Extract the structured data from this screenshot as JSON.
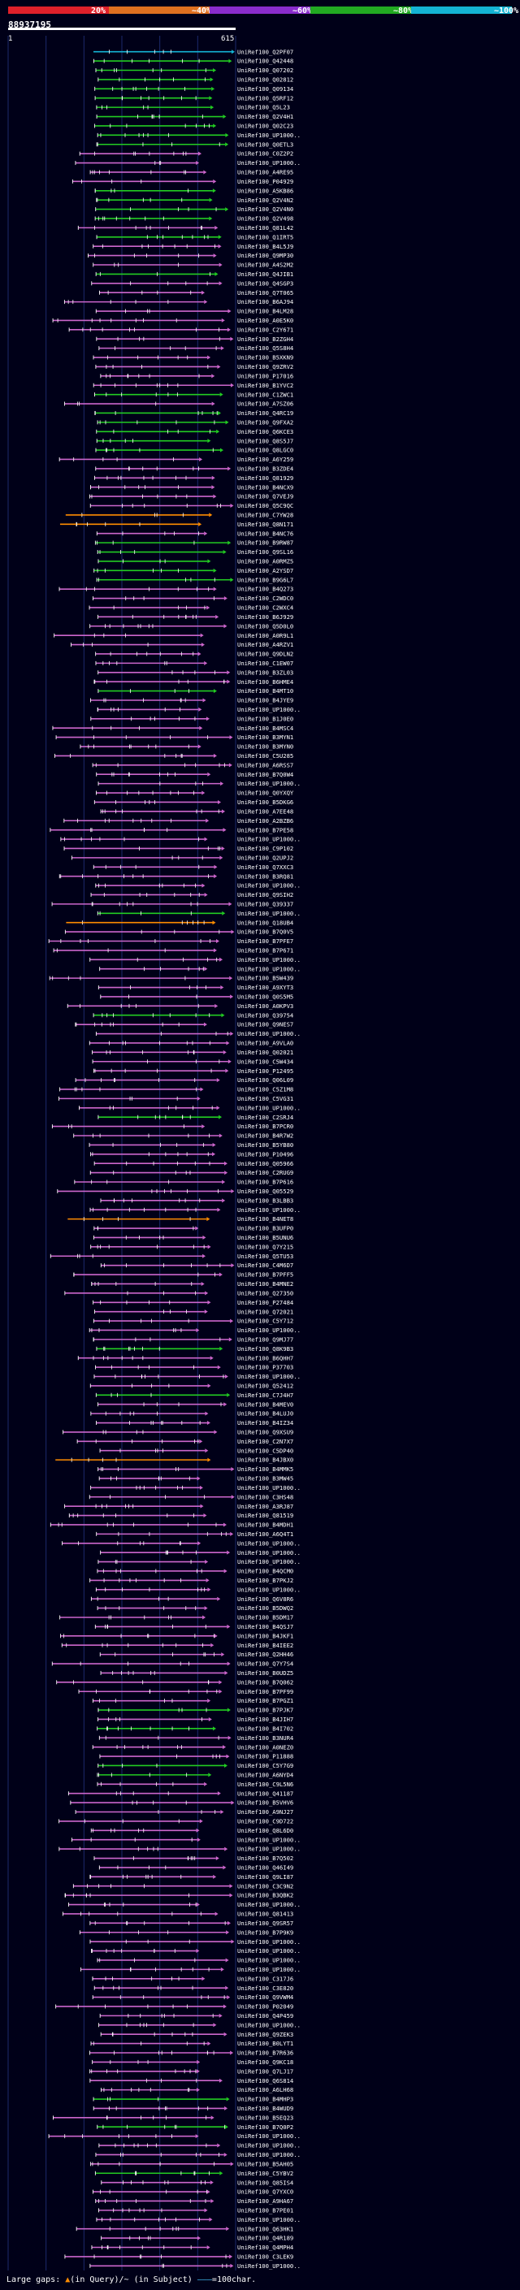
{
  "legend": {
    "segments": [
      {
        "label": "20%",
        "color": "#e0202a"
      },
      {
        "label": "~40%",
        "color": "#e07020"
      },
      {
        "label": "~60%",
        "color": "#8a2ccc"
      },
      {
        "label": "~80%",
        "color": "#22aa22"
      },
      {
        "label": "~100%",
        "color": "#14b4d4"
      }
    ]
  },
  "query": {
    "id": "88937195",
    "length_start": "1",
    "length_end": "615",
    "color": "#ffffff"
  },
  "colors": {
    "low": "#ff8c00",
    "mid": "#cc66cc",
    "high": "#22cc22",
    "top": "#14b4d4",
    "grid": "#1c2a6c",
    "label": "#ffffff"
  },
  "hits": [
    {
      "name": "UniRef100_Q2PF07",
      "cls": "top"
    },
    {
      "name": "UniRef100_Q42448",
      "cls": "high"
    },
    {
      "name": "UniRef100_Q07202",
      "cls": "high"
    },
    {
      "name": "UniRef100_Q02812",
      "cls": "high"
    },
    {
      "name": "UniRef100_Q09134",
      "cls": "high"
    },
    {
      "name": "UniRef100_Q5RF12",
      "cls": "high"
    },
    {
      "name": "UniRef100_Q5L23",
      "cls": "high"
    },
    {
      "name": "UniRef100_Q2V4H1",
      "cls": "high"
    },
    {
      "name": "UniRef100_Q02C23",
      "cls": "high"
    },
    {
      "name": "UniRef100_UP1000..",
      "cls": "high"
    },
    {
      "name": "UniRef100_Q0ETL3",
      "cls": "high"
    },
    {
      "name": "UniRef100_C0Z2P2",
      "cls": "mid"
    },
    {
      "name": "UniRef100_UP1000..",
      "cls": "mid"
    },
    {
      "name": "UniRef100_A4RE95",
      "cls": "mid"
    },
    {
      "name": "UniRef100_P04929",
      "cls": "mid"
    },
    {
      "name": "UniRef100_A5KB86",
      "cls": "high"
    },
    {
      "name": "UniRef100_Q2V4N2",
      "cls": "high"
    },
    {
      "name": "UniRef100_Q2V4N0",
      "cls": "high"
    },
    {
      "name": "UniRef100_Q2V498",
      "cls": "high"
    },
    {
      "name": "UniRef100_Q81L42",
      "cls": "mid"
    },
    {
      "name": "UniRef100_Q1IRT5",
      "cls": "high"
    },
    {
      "name": "UniRef100_B4L5J9",
      "cls": "mid"
    },
    {
      "name": "UniRef100_Q9MP30",
      "cls": "mid"
    },
    {
      "name": "UniRef100_A4S2M2",
      "cls": "mid"
    },
    {
      "name": "UniRef100_Q4JIB1",
      "cls": "high"
    },
    {
      "name": "UniRef100_Q4SGP3",
      "cls": "mid"
    },
    {
      "name": "UniRef100_Q7T065",
      "cls": "mid"
    },
    {
      "name": "UniRef100_B6AJ94",
      "cls": "mid"
    },
    {
      "name": "UniRef100_B4LM28",
      "cls": "mid"
    },
    {
      "name": "UniRef100_A0E5K0",
      "cls": "mid"
    },
    {
      "name": "UniRef100_C2Y671",
      "cls": "mid"
    },
    {
      "name": "UniRef100_B2ZGH4",
      "cls": "mid"
    },
    {
      "name": "UniRef100_Q5S8H4",
      "cls": "mid"
    },
    {
      "name": "UniRef100_B5XKN9",
      "cls": "mid"
    },
    {
      "name": "UniRef100_Q9ZRV2",
      "cls": "mid"
    },
    {
      "name": "UniRef100_P17016",
      "cls": "mid"
    },
    {
      "name": "UniRef100_B1YVC2",
      "cls": "mid"
    },
    {
      "name": "UniRef100_C1ZWC1",
      "cls": "high"
    },
    {
      "name": "UniRef100_A7SZ06",
      "cls": "mid"
    },
    {
      "name": "UniRef100_Q4RC19",
      "cls": "high"
    },
    {
      "name": "UniRef100_Q9FXA2",
      "cls": "high"
    },
    {
      "name": "UniRef100_Q6KCE3",
      "cls": "high"
    },
    {
      "name": "UniRef100_Q8S5J7",
      "cls": "high"
    },
    {
      "name": "UniRef100_Q8LGC0",
      "cls": "high"
    },
    {
      "name": "UniRef100_A6Y259",
      "cls": "mid"
    },
    {
      "name": "UniRef100_B3ZDE4",
      "cls": "mid"
    },
    {
      "name": "UniRef100_Q81929",
      "cls": "mid"
    },
    {
      "name": "UniRef100_B4NCX9",
      "cls": "mid"
    },
    {
      "name": "UniRef100_Q7VEJ9",
      "cls": "mid"
    },
    {
      "name": "UniRef100_Q5C9QC",
      "cls": "mid"
    },
    {
      "name": "UniRef100_C7YW28",
      "cls": "low"
    },
    {
      "name": "UniRef100_Q8N171",
      "cls": "low"
    },
    {
      "name": "UniRef100_B4NC76",
      "cls": "mid"
    },
    {
      "name": "UniRef100_B9RW87",
      "cls": "high"
    },
    {
      "name": "UniRef100_Q9SL16",
      "cls": "high"
    },
    {
      "name": "UniRef100_A0RMZ5",
      "cls": "high"
    },
    {
      "name": "UniRef100_A2YSD7",
      "cls": "high"
    },
    {
      "name": "UniRef100_B9G6L7",
      "cls": "high"
    },
    {
      "name": "UniRef100_B4Q273",
      "cls": "mid"
    },
    {
      "name": "UniRef100_C2WDC0",
      "cls": "mid"
    },
    {
      "name": "UniRef100_C2WXC4",
      "cls": "mid"
    },
    {
      "name": "UniRef100_B6J929",
      "cls": "mid"
    },
    {
      "name": "UniRef100_Q5D0L0",
      "cls": "mid"
    },
    {
      "name": "UniRef100_A0R9L1",
      "cls": "mid"
    },
    {
      "name": "UniRef100_A4RZV1",
      "cls": "mid"
    },
    {
      "name": "UniRef100_Q9DLN2",
      "cls": "mid"
    },
    {
      "name": "UniRef100_C1EW07",
      "cls": "mid"
    },
    {
      "name": "UniRef100_B3ZL03",
      "cls": "mid"
    },
    {
      "name": "UniRef100_B6HME4",
      "cls": "mid"
    },
    {
      "name": "UniRef100_B4MT10",
      "cls": "high"
    },
    {
      "name": "UniRef100_B4JYE9",
      "cls": "mid"
    },
    {
      "name": "UniRef100_UP1000..",
      "cls": "mid"
    },
    {
      "name": "UniRef100_B1J0E0",
      "cls": "mid"
    },
    {
      "name": "UniRef100_B4MSC4",
      "cls": "mid"
    },
    {
      "name": "UniRef100_B3MYN1",
      "cls": "mid"
    },
    {
      "name": "UniRef100_B3MYN0",
      "cls": "mid"
    },
    {
      "name": "UniRef100_C5U285",
      "cls": "mid"
    },
    {
      "name": "UniRef100_A6RSS7",
      "cls": "mid"
    },
    {
      "name": "UniRef100_B7Q0W4",
      "cls": "mid"
    },
    {
      "name": "UniRef100_UP1000..",
      "cls": "mid"
    },
    {
      "name": "UniRef100_Q0YXQY",
      "cls": "mid"
    },
    {
      "name": "UniRef100_B5DKG6",
      "cls": "mid"
    },
    {
      "name": "UniRef100_A7EE48",
      "cls": "mid"
    },
    {
      "name": "UniRef100_A2BZB6",
      "cls": "mid"
    },
    {
      "name": "UniRef100_B7PE58",
      "cls": "mid"
    },
    {
      "name": "UniRef100_UP1000..",
      "cls": "mid"
    },
    {
      "name": "UniRef100_C9P102",
      "cls": "mid"
    },
    {
      "name": "UniRef100_Q2UPJ2",
      "cls": "mid"
    },
    {
      "name": "UniRef100_Q7XXC3",
      "cls": "mid"
    },
    {
      "name": "UniRef100_B3RQ81",
      "cls": "mid"
    },
    {
      "name": "UniRef100_UP1000..",
      "cls": "mid"
    },
    {
      "name": "UniRef100_Q9SIH2",
      "cls": "mid"
    },
    {
      "name": "UniRef100_Q39337",
      "cls": "mid"
    },
    {
      "name": "UniRef100_UP1000..",
      "cls": "high"
    },
    {
      "name": "UniRef100_Q18UB4",
      "cls": "low"
    },
    {
      "name": "UniRef100_B7Q0V5",
      "cls": "mid"
    },
    {
      "name": "UniRef100_B7PFE7",
      "cls": "mid"
    },
    {
      "name": "UniRef100_B7P671",
      "cls": "mid"
    },
    {
      "name": "UniRef100_UP1000..",
      "cls": "mid"
    },
    {
      "name": "UniRef100_UP1000..",
      "cls": "mid"
    },
    {
      "name": "UniRef100_B5W439",
      "cls": "mid"
    },
    {
      "name": "UniRef100_A9XYT3",
      "cls": "mid"
    },
    {
      "name": "UniRef100_Q0S5M5",
      "cls": "mid"
    },
    {
      "name": "UniRef100_A0KPV3",
      "cls": "mid"
    },
    {
      "name": "UniRef100_Q39754",
      "cls": "high"
    },
    {
      "name": "UniRef100_Q9NES7",
      "cls": "mid"
    },
    {
      "name": "UniRef100_UP1000..",
      "cls": "mid"
    },
    {
      "name": "UniRef100_A9VLA0",
      "cls": "mid"
    },
    {
      "name": "UniRef100_Q02021",
      "cls": "mid"
    },
    {
      "name": "UniRef100_C5W434",
      "cls": "mid"
    },
    {
      "name": "UniRef100_P12495",
      "cls": "mid"
    },
    {
      "name": "UniRef100_Q06L09",
      "cls": "mid"
    },
    {
      "name": "UniRef100_C5Z1M8",
      "cls": "mid"
    },
    {
      "name": "UniRef100_C5VG31",
      "cls": "mid"
    },
    {
      "name": "UniRef100_UP1000..",
      "cls": "mid"
    },
    {
      "name": "UniRef100_C2SRJ4",
      "cls": "high"
    },
    {
      "name": "UniRef100_B7PCR0",
      "cls": "mid"
    },
    {
      "name": "UniRef100_B4R7W2",
      "cls": "mid"
    },
    {
      "name": "UniRef100_B5YB80",
      "cls": "mid"
    },
    {
      "name": "UniRef100_P10496",
      "cls": "mid"
    },
    {
      "name": "UniRef100_Q05966",
      "cls": "mid"
    },
    {
      "name": "UniRef100_C2RUG9",
      "cls": "mid"
    },
    {
      "name": "UniRef100_B7P616",
      "cls": "mid"
    },
    {
      "name": "UniRef100_Q05529",
      "cls": "mid"
    },
    {
      "name": "UniRef100_B3LBB3",
      "cls": "mid"
    },
    {
      "name": "UniRef100_UP1000..",
      "cls": "mid"
    },
    {
      "name": "UniRef100_B4NET8",
      "cls": "low"
    },
    {
      "name": "UniRef100_B3UFP0",
      "cls": "mid"
    },
    {
      "name": "UniRef100_B5UNU6",
      "cls": "mid"
    },
    {
      "name": "UniRef100_Q7Y215",
      "cls": "mid"
    },
    {
      "name": "UniRef100_Q5TU53",
      "cls": "mid"
    },
    {
      "name": "UniRef100_C4M6D7",
      "cls": "mid"
    },
    {
      "name": "UniRef100_B7PFF5",
      "cls": "mid"
    },
    {
      "name": "UniRef100_B4MNE2",
      "cls": "mid"
    },
    {
      "name": "UniRef100_Q27350",
      "cls": "mid"
    },
    {
      "name": "UniRef100_P27484",
      "cls": "mid"
    },
    {
      "name": "UniRef100_Q72021",
      "cls": "mid"
    },
    {
      "name": "UniRef100_C5Y712",
      "cls": "mid"
    },
    {
      "name": "UniRef100_UP1000..",
      "cls": "mid"
    },
    {
      "name": "UniRef100_Q9MJ77",
      "cls": "mid"
    },
    {
      "name": "UniRef100_Q8K9B3",
      "cls": "high"
    },
    {
      "name": "UniRef100_B6QHH7",
      "cls": "mid"
    },
    {
      "name": "UniRef100_P37703",
      "cls": "mid"
    },
    {
      "name": "UniRef100_UP1000..",
      "cls": "mid"
    },
    {
      "name": "UniRef100_Q52412",
      "cls": "mid"
    },
    {
      "name": "UniRef100_C7J4H7",
      "cls": "high"
    },
    {
      "name": "UniRef100_B4MEV0",
      "cls": "mid"
    },
    {
      "name": "UniRef100_B4LUJ0",
      "cls": "mid"
    },
    {
      "name": "UniRef100_B4IZ34",
      "cls": "mid"
    },
    {
      "name": "UniRef100_Q9XSU9",
      "cls": "mid"
    },
    {
      "name": "UniRef100_C2N7X7",
      "cls": "mid"
    },
    {
      "name": "UniRef100_C5DP40",
      "cls": "mid"
    },
    {
      "name": "UniRef100_B4JBX0",
      "cls": "low"
    },
    {
      "name": "UniRef100_B4MMK5",
      "cls": "mid"
    },
    {
      "name": "UniRef100_B3MW45",
      "cls": "mid"
    },
    {
      "name": "UniRef100_UP1000..",
      "cls": "mid"
    },
    {
      "name": "UniRef100_C3HS48",
      "cls": "mid"
    },
    {
      "name": "UniRef100_A3RJ87",
      "cls": "mid"
    },
    {
      "name": "UniRef100_Q81519",
      "cls": "mid"
    },
    {
      "name": "UniRef100_B4MDH1",
      "cls": "mid"
    },
    {
      "name": "UniRef100_A6Q4T1",
      "cls": "mid"
    },
    {
      "name": "UniRef100_UP1000..",
      "cls": "mid"
    },
    {
      "name": "UniRef100_UP1000..",
      "cls": "mid"
    },
    {
      "name": "UniRef100_UP1000..",
      "cls": "mid"
    },
    {
      "name": "UniRef100_B4QCM0",
      "cls": "mid"
    },
    {
      "name": "UniRef100_B7PKJ2",
      "cls": "mid"
    },
    {
      "name": "UniRef100_UP1000..",
      "cls": "mid"
    },
    {
      "name": "UniRef100_Q6V8R6",
      "cls": "mid"
    },
    {
      "name": "UniRef100_B5DWQ2",
      "cls": "mid"
    },
    {
      "name": "UniRef100_B5DM17",
      "cls": "mid"
    },
    {
      "name": "UniRef100_B4QSJ7",
      "cls": "mid"
    },
    {
      "name": "UniRef100_B4JKF1",
      "cls": "mid"
    },
    {
      "name": "UniRef100_B4IEE2",
      "cls": "mid"
    },
    {
      "name": "UniRef100_Q2HH46",
      "cls": "mid"
    },
    {
      "name": "UniRef100_Q7Y7S4",
      "cls": "mid"
    },
    {
      "name": "UniRef100_B0UDZ5",
      "cls": "mid"
    },
    {
      "name": "UniRef100_B7Q062",
      "cls": "mid"
    },
    {
      "name": "UniRef100_B7PF99",
      "cls": "mid"
    },
    {
      "name": "UniRef100_B7PGZ1",
      "cls": "mid"
    },
    {
      "name": "UniRef100_B7PJK7",
      "cls": "high"
    },
    {
      "name": "UniRef100_B4JIH7",
      "cls": "mid"
    },
    {
      "name": "UniRef100_B4I702",
      "cls": "high"
    },
    {
      "name": "UniRef100_B3NUR4",
      "cls": "mid"
    },
    {
      "name": "UniRef100_A0NEZ0",
      "cls": "mid"
    },
    {
      "name": "UniRef100_P11888",
      "cls": "mid"
    },
    {
      "name": "UniRef100_C5Y7G9",
      "cls": "high"
    },
    {
      "name": "UniRef100_A6NYD4",
      "cls": "high"
    },
    {
      "name": "UniRef100_C9L5N6",
      "cls": "mid"
    },
    {
      "name": "UniRef100_Q41187",
      "cls": "mid"
    },
    {
      "name": "UniRef100_B5VHV6",
      "cls": "mid"
    },
    {
      "name": "UniRef100_A9NJ27",
      "cls": "mid"
    },
    {
      "name": "UniRef100_C9D722",
      "cls": "mid"
    },
    {
      "name": "UniRef100_Q8L6D0",
      "cls": "mid"
    },
    {
      "name": "UniRef100_UP1000..",
      "cls": "mid"
    },
    {
      "name": "UniRef100_UP1000..",
      "cls": "mid"
    },
    {
      "name": "UniRef100_B7Q502",
      "cls": "mid"
    },
    {
      "name": "UniRef100_Q46I49",
      "cls": "mid"
    },
    {
      "name": "UniRef100_Q9LI87",
      "cls": "mid"
    },
    {
      "name": "UniRef100_C3C9N2",
      "cls": "mid"
    },
    {
      "name": "UniRef100_B3QBK2",
      "cls": "mid"
    },
    {
      "name": "UniRef100_UP1000..",
      "cls": "mid"
    },
    {
      "name": "UniRef100_Q81413",
      "cls": "mid"
    },
    {
      "name": "UniRef100_Q9SR57",
      "cls": "mid"
    },
    {
      "name": "UniRef100_B7P9K9",
      "cls": "mid"
    },
    {
      "name": "UniRef100_UP1000..",
      "cls": "mid"
    },
    {
      "name": "UniRef100_UP1000..",
      "cls": "mid"
    },
    {
      "name": "UniRef100_UP1000..",
      "cls": "mid"
    },
    {
      "name": "UniRef100_UP1000..",
      "cls": "mid"
    },
    {
      "name": "UniRef100_C317J6",
      "cls": "mid"
    },
    {
      "name": "UniRef100_C3E820",
      "cls": "mid"
    },
    {
      "name": "UniRef100_Q9VWM4",
      "cls": "mid"
    },
    {
      "name": "UniRef100_P02049",
      "cls": "mid"
    },
    {
      "name": "UniRef100_Q4P459",
      "cls": "mid"
    },
    {
      "name": "UniRef100_UP1000..",
      "cls": "mid"
    },
    {
      "name": "UniRef100_Q9ZEK3",
      "cls": "mid"
    },
    {
      "name": "UniRef100_B0LYT1",
      "cls": "mid"
    },
    {
      "name": "UniRef100_B7R636",
      "cls": "mid"
    },
    {
      "name": "UniRef100_Q9KC18",
      "cls": "mid"
    },
    {
      "name": "UniRef100_Q7LJ17",
      "cls": "mid"
    },
    {
      "name": "UniRef100_Q6S814",
      "cls": "mid"
    },
    {
      "name": "UniRef100_A6LH68",
      "cls": "mid"
    },
    {
      "name": "UniRef100_B4MHP3",
      "cls": "high"
    },
    {
      "name": "UniRef100_B4WUD9",
      "cls": "mid"
    },
    {
      "name": "UniRef100_B5EQ23",
      "cls": "mid"
    },
    {
      "name": "UniRef100_B7Q0P2",
      "cls": "high"
    },
    {
      "name": "UniRef100_UP1000..",
      "cls": "mid"
    },
    {
      "name": "UniRef100_UP1000..",
      "cls": "mid"
    },
    {
      "name": "UniRef100_UP1000..",
      "cls": "mid"
    },
    {
      "name": "UniRef100_B5AH05",
      "cls": "mid"
    },
    {
      "name": "UniRef100_C5YBV2",
      "cls": "high"
    },
    {
      "name": "UniRef100_Q85IS4",
      "cls": "mid"
    },
    {
      "name": "UniRef100_Q7YXC0",
      "cls": "mid"
    },
    {
      "name": "UniRef100_A9HA67",
      "cls": "mid"
    },
    {
      "name": "UniRef100_B7PE01",
      "cls": "mid"
    },
    {
      "name": "UniRef100_UP1000..",
      "cls": "mid"
    },
    {
      "name": "UniRef100_Q63HK1",
      "cls": "mid"
    },
    {
      "name": "UniRef100_Q4R189",
      "cls": "mid"
    },
    {
      "name": "UniRef100_Q4MPH4",
      "cls": "mid"
    },
    {
      "name": "UniRef100_C3LEK9",
      "cls": "mid"
    },
    {
      "name": "UniRef100_UP1000..",
      "cls": "mid"
    }
  ],
  "footer": {
    "label": "Large gaps:",
    "query_gap": "(in Query)",
    "subject_gap": "/~ (in Subject)",
    "scale_note": "=100char."
  }
}
